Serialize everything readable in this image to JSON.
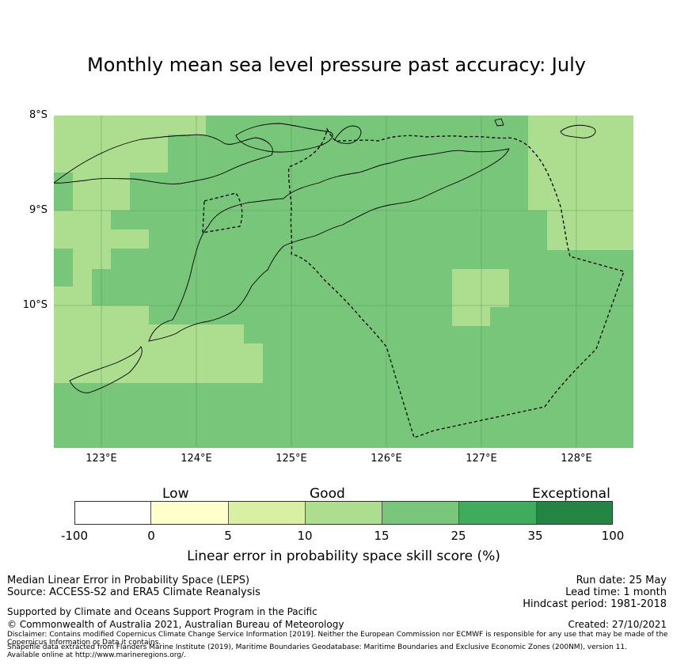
{
  "title": "Monthly mean sea level pressure past accuracy: July",
  "map": {
    "lat_labels": [
      "8°S",
      "9°S",
      "10°S"
    ],
    "lon_labels": [
      "123°E",
      "124°E",
      "125°E",
      "126°E",
      "127°E",
      "128°E"
    ],
    "colors": {
      "light_green": "#addd8e",
      "mid_green": "#78c679",
      "eez_line": "#000000"
    }
  },
  "legend": {
    "categories": [
      "Low",
      "Good",
      "Exceptional"
    ],
    "ticks": [
      "-100",
      "0",
      "5",
      "10",
      "15",
      "25",
      "35",
      "100"
    ],
    "colors": [
      "#ffffff",
      "#ffffcc",
      "#d9f0a3",
      "#addd8e",
      "#78c679",
      "#41ab5d",
      "#238443"
    ],
    "xlabel": "Linear error in probability space skill score (%)"
  },
  "footer": {
    "method": "Median Linear Error in Probability Space (LEPS)",
    "source": "Source: ACCESS-S2 and ERA5 Climate Reanalysis",
    "support": "Supported by Climate and Oceans Support Program in the Pacific",
    "copyright": "© Commonwealth of Australia 2021, Australian Bureau of Meteorology",
    "disclaimer": "Disclaimer: Contains modified Copernicus Climate Change Service Information [2019]. Neither the European Commission nor ECMWF is responsible for any use that may be made of the Copernicus Information or Data it contains.",
    "shapefile": "Shapefile data extracted from Flanders Marine Institute (2019), Maritime Boundaries Geodatabase: Maritime Boundaries and Exclusive Economic Zones (200NM), version 11. Available online at http://www.marineregions.org/.",
    "run_date": "Run date: 25 May",
    "lead_time": "Lead time: 1 month",
    "hindcast": "Hindcast period: 1981-2018",
    "created": "Created: 27/10/2021"
  }
}
